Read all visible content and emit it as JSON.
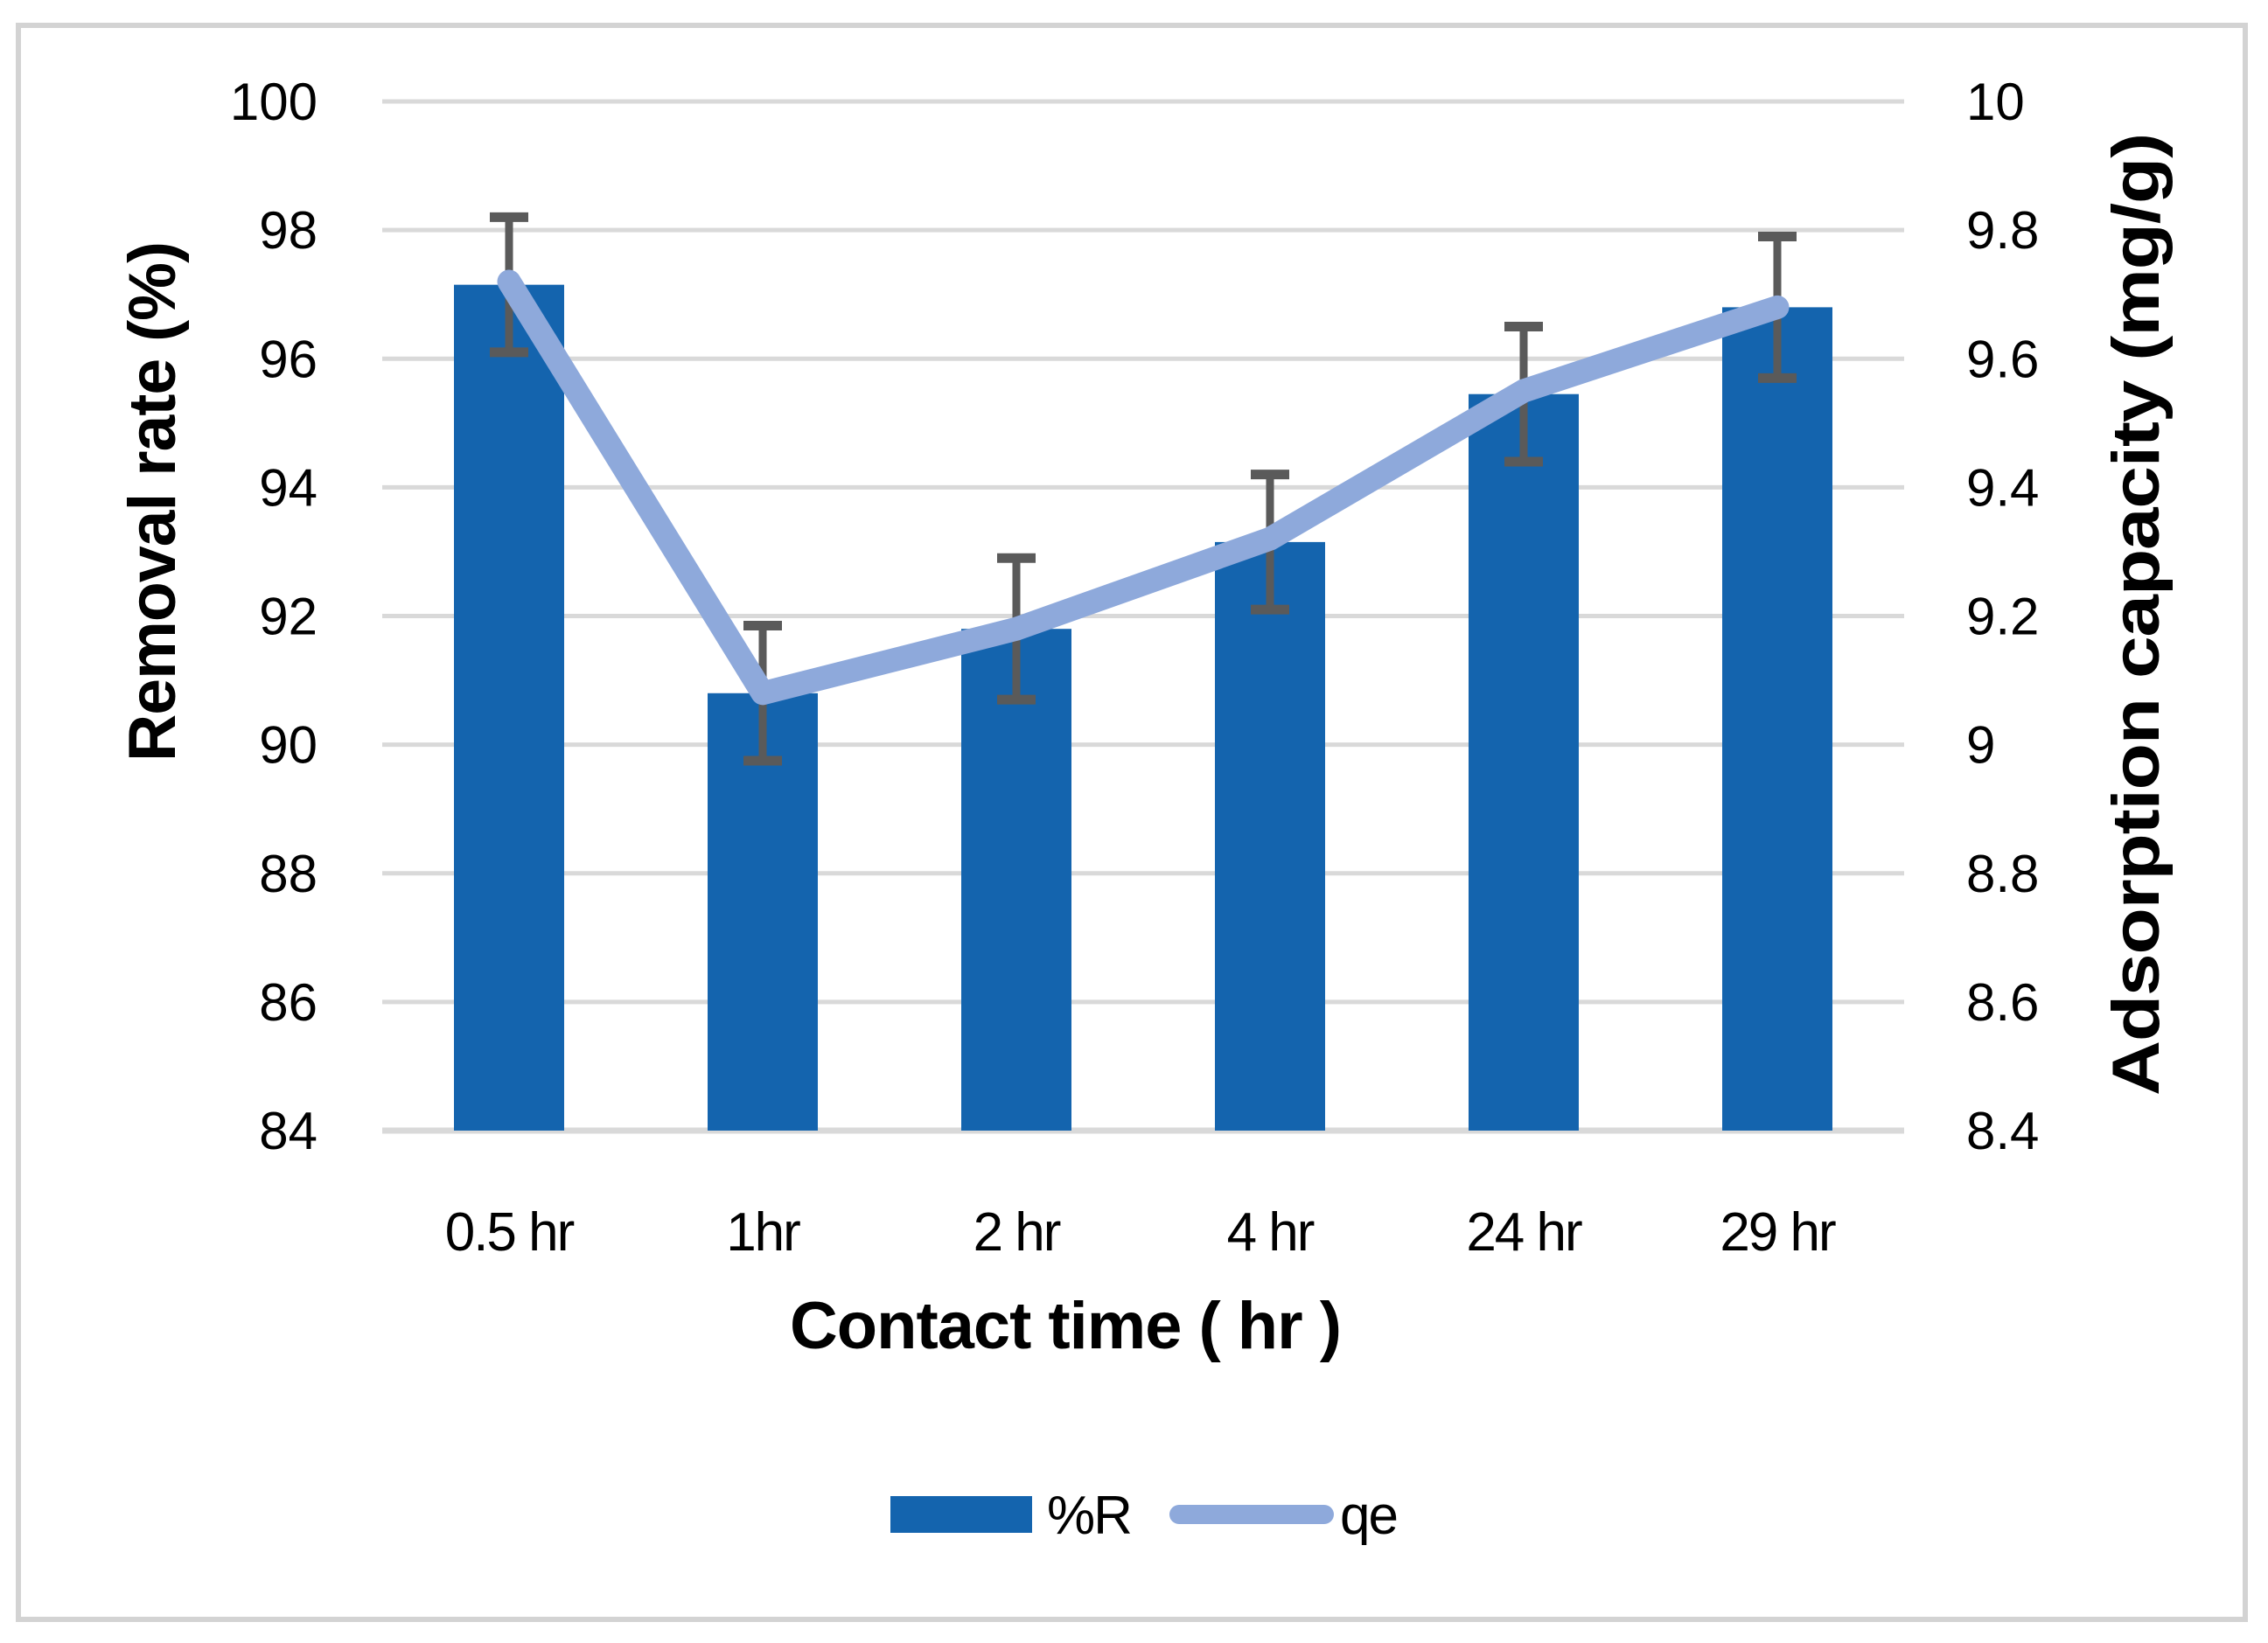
{
  "chart_data": {
    "type": "bar",
    "subtype": "combo-bar-line-dual-axis",
    "categories": [
      "0.5 hr",
      "1hr",
      "2 hr",
      "4 hr",
      "24 hr",
      "29 hr"
    ],
    "series": [
      {
        "name": "%R",
        "type": "bar",
        "axis": "left",
        "values": [
          97.15,
          90.8,
          91.8,
          93.15,
          95.45,
          96.8
        ],
        "error_bars": [
          1.05,
          1.05,
          1.1,
          1.05,
          1.05,
          1.1
        ],
        "color": "#1464AE"
      },
      {
        "name": "qe",
        "type": "line",
        "axis": "right",
        "values": [
          9.72,
          9.08,
          9.18,
          9.32,
          9.55,
          9.68
        ],
        "color": "#8EA9DB"
      }
    ],
    "title": "",
    "xlabel": "Contact time ( hr )",
    "ylabel_left": "Removal rate (%)",
    "ylabel_right": "Adsorption capacity (mg/g)",
    "y_left": {
      "min": 84,
      "max": 100,
      "step": 2,
      "tick_labels": [
        "100",
        "98",
        "96",
        "94",
        "92",
        "90",
        "88",
        "86",
        "84"
      ]
    },
    "y_right": {
      "min": 8.4,
      "max": 10,
      "step": 0.2,
      "tick_labels": [
        "10",
        "9.8",
        "9.6",
        "9.4",
        "9.2",
        "9",
        "8.8",
        "8.6",
        "8.4"
      ]
    },
    "grid": "horizontal-on",
    "legend_position": "bottom",
    "colors": {
      "error_bar": "#5A5A5A",
      "gridline": "#D9D9D9",
      "frame": "#D3D3D3",
      "text": "#000000",
      "background": "#FFFFFF"
    }
  }
}
